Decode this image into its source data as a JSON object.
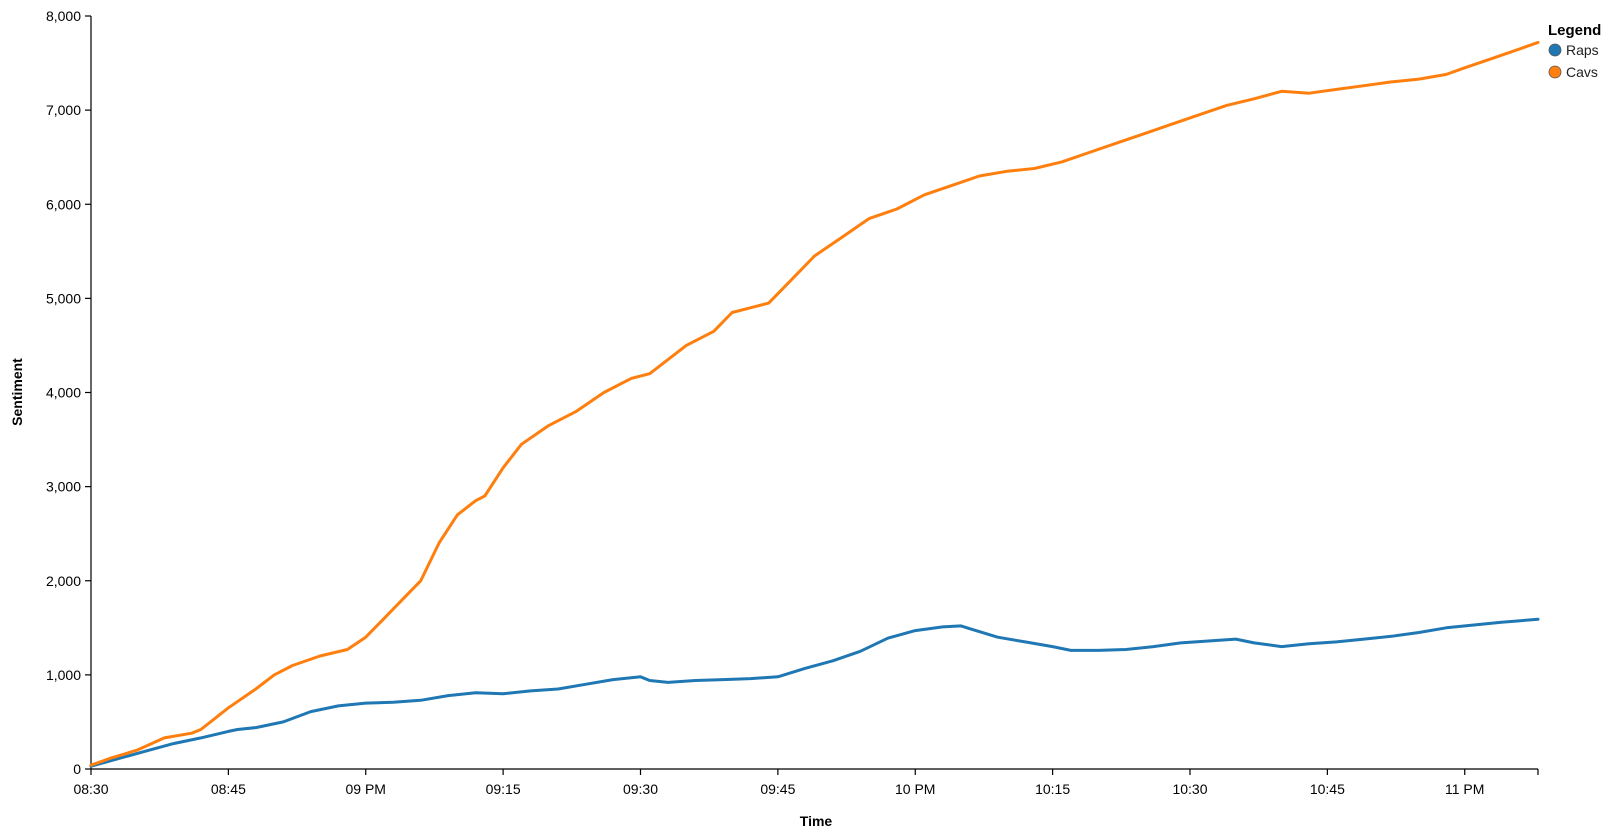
{
  "chart_data": {
    "type": "line",
    "title": "",
    "xlabel": "Time",
    "ylabel": "Sentiment",
    "x_ticks": [
      "08:30",
      "08:45",
      "09 PM",
      "09:15",
      "09:30",
      "09:45",
      "10 PM",
      "10:15",
      "10:30",
      "10:45",
      "11 PM"
    ],
    "x_tick_minutes": [
      0,
      15,
      30,
      45,
      60,
      75,
      90,
      105,
      120,
      135,
      150
    ],
    "x_unit": "minutes after 08:30 PM",
    "xlim": [
      0,
      158
    ],
    "ylim": [
      0,
      8000
    ],
    "y_ticks": [
      0,
      1000,
      2000,
      3000,
      4000,
      5000,
      6000,
      7000,
      8000
    ],
    "y_tick_labels": [
      "0",
      "1,000",
      "2,000",
      "3,000",
      "4,000",
      "5,000",
      "6,000",
      "7,000",
      "8,000"
    ],
    "grid": false,
    "legend": {
      "title": "Legend",
      "placement": "top-right"
    },
    "series": [
      {
        "name": "Raps",
        "color": "#1f77b4",
        "points": [
          [
            0,
            30
          ],
          [
            3,
            110
          ],
          [
            6,
            190
          ],
          [
            9,
            270
          ],
          [
            12,
            330
          ],
          [
            15,
            400
          ],
          [
            16,
            420
          ],
          [
            18,
            440
          ],
          [
            21,
            500
          ],
          [
            24,
            610
          ],
          [
            27,
            670
          ],
          [
            30,
            700
          ],
          [
            33,
            710
          ],
          [
            36,
            730
          ],
          [
            39,
            780
          ],
          [
            42,
            810
          ],
          [
            45,
            800
          ],
          [
            48,
            830
          ],
          [
            51,
            850
          ],
          [
            54,
            900
          ],
          [
            57,
            950
          ],
          [
            60,
            980
          ],
          [
            61,
            940
          ],
          [
            63,
            920
          ],
          [
            66,
            940
          ],
          [
            69,
            950
          ],
          [
            72,
            960
          ],
          [
            75,
            980
          ],
          [
            78,
            1070
          ],
          [
            81,
            1150
          ],
          [
            84,
            1250
          ],
          [
            87,
            1390
          ],
          [
            90,
            1470
          ],
          [
            93,
            1510
          ],
          [
            95,
            1520
          ],
          [
            96,
            1490
          ],
          [
            99,
            1400
          ],
          [
            102,
            1350
          ],
          [
            105,
            1300
          ],
          [
            107,
            1260
          ],
          [
            110,
            1260
          ],
          [
            113,
            1270
          ],
          [
            116,
            1300
          ],
          [
            119,
            1340
          ],
          [
            122,
            1360
          ],
          [
            125,
            1380
          ],
          [
            127,
            1340
          ],
          [
            130,
            1300
          ],
          [
            133,
            1330
          ],
          [
            136,
            1350
          ],
          [
            139,
            1380
          ],
          [
            142,
            1410
          ],
          [
            145,
            1450
          ],
          [
            148,
            1500
          ],
          [
            151,
            1530
          ],
          [
            154,
            1560
          ],
          [
            158,
            1590
          ]
        ]
      },
      {
        "name": "Cavs",
        "color": "#ff7f0e",
        "points": [
          [
            0,
            40
          ],
          [
            2,
            110
          ],
          [
            5,
            200
          ],
          [
            8,
            330
          ],
          [
            11,
            380
          ],
          [
            12,
            420
          ],
          [
            15,
            650
          ],
          [
            18,
            850
          ],
          [
            20,
            1000
          ],
          [
            22,
            1100
          ],
          [
            25,
            1200
          ],
          [
            28,
            1270
          ],
          [
            30,
            1400
          ],
          [
            32,
            1600
          ],
          [
            34,
            1800
          ],
          [
            36,
            2000
          ],
          [
            38,
            2400
          ],
          [
            40,
            2700
          ],
          [
            42,
            2850
          ],
          [
            43,
            2900
          ],
          [
            45,
            3200
          ],
          [
            47,
            3450
          ],
          [
            50,
            3650
          ],
          [
            53,
            3800
          ],
          [
            56,
            4000
          ],
          [
            59,
            4150
          ],
          [
            61,
            4200
          ],
          [
            63,
            4350
          ],
          [
            65,
            4500
          ],
          [
            68,
            4650
          ],
          [
            70,
            4850
          ],
          [
            72,
            4900
          ],
          [
            74,
            4950
          ],
          [
            76,
            5150
          ],
          [
            79,
            5450
          ],
          [
            82,
            5650
          ],
          [
            85,
            5850
          ],
          [
            88,
            5950
          ],
          [
            91,
            6100
          ],
          [
            94,
            6200
          ],
          [
            97,
            6300
          ],
          [
            100,
            6350
          ],
          [
            103,
            6380
          ],
          [
            106,
            6450
          ],
          [
            109,
            6550
          ],
          [
            112,
            6650
          ],
          [
            115,
            6750
          ],
          [
            118,
            6850
          ],
          [
            121,
            6950
          ],
          [
            124,
            7050
          ],
          [
            127,
            7120
          ],
          [
            130,
            7200
          ],
          [
            133,
            7180
          ],
          [
            136,
            7220
          ],
          [
            139,
            7260
          ],
          [
            142,
            7300
          ],
          [
            145,
            7330
          ],
          [
            148,
            7380
          ],
          [
            150,
            7450
          ],
          [
            153,
            7550
          ],
          [
            156,
            7650
          ],
          [
            158,
            7720
          ]
        ]
      }
    ]
  }
}
